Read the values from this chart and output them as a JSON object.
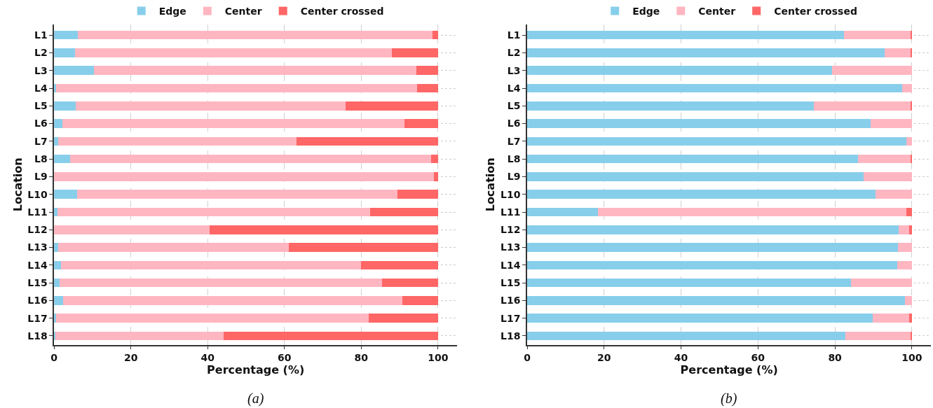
{
  "chart_data": [
    {
      "type": "bar",
      "orientation": "horizontal",
      "stacked": true,
      "xlabel": "Percentage (%)",
      "ylabel": "Location",
      "annotations": [
        "(a)"
      ],
      "categories": [
        "L1",
        "L2",
        "L3",
        "L4",
        "L5",
        "L6",
        "L7",
        "L8",
        "L9",
        "L10",
        "L11",
        "L12",
        "L13",
        "L14",
        "L15",
        "L16",
        "L17",
        "L18"
      ],
      "xlim": [
        0,
        105
      ],
      "xticks": [
        0,
        20,
        40,
        60,
        80,
        100
      ],
      "grid": true,
      "legend": "top",
      "series": [
        {
          "name": "Edge",
          "color": "#87ceeb",
          "values": [
            6.1,
            5.4,
            10.3,
            0.5,
            5.6,
            2.1,
            1.1,
            4.2,
            0,
            5.9,
            0.9,
            0,
            1.1,
            1.8,
            1.4,
            2.3,
            0.5,
            0.4
          ]
        },
        {
          "name": "Center",
          "color": "#ffb6c1",
          "values": [
            92.4,
            82.6,
            84.0,
            94.1,
            70.3,
            89.1,
            62.1,
            94.0,
            98.9,
            83.5,
            81.5,
            40.5,
            60.0,
            78.2,
            84.0,
            88.4,
            81.4,
            43.8
          ]
        },
        {
          "name": "Center crossed",
          "color": "#ff6666",
          "values": [
            1.5,
            12.0,
            5.7,
            5.4,
            24.1,
            8.8,
            36.8,
            1.8,
            1.1,
            10.6,
            17.6,
            59.5,
            38.9,
            20.0,
            14.6,
            9.3,
            18.1,
            55.8
          ]
        }
      ]
    },
    {
      "type": "bar",
      "orientation": "horizontal",
      "stacked": true,
      "xlabel": "Percentage (%)",
      "ylabel": "Location",
      "annotations": [
        "(b)"
      ],
      "categories": [
        "L1",
        "L2",
        "L3",
        "L4",
        "L5",
        "L6",
        "L7",
        "L8",
        "L9",
        "L10",
        "L11",
        "L12",
        "L13",
        "L14",
        "L15",
        "L16",
        "L17",
        "L18"
      ],
      "xlim": [
        0,
        105
      ],
      "xticks": [
        0,
        20,
        40,
        60,
        80,
        100
      ],
      "grid": true,
      "legend": "top",
      "series": [
        {
          "name": "Edge",
          "color": "#87ceeb",
          "values": [
            82.3,
            92.9,
            79.2,
            97.5,
            74.5,
            89.2,
            98.6,
            85.9,
            87.5,
            90.5,
            18.4,
            96.5,
            96.4,
            96.2,
            84.2,
            98.2,
            89.8,
            82.7
          ]
        },
        {
          "name": "Center",
          "color": "#ffb6c1",
          "values": [
            17.3,
            6.8,
            20.8,
            2.5,
            25.1,
            10.8,
            1.4,
            13.8,
            12.5,
            9.5,
            80.1,
            2.7,
            3.6,
            3.8,
            15.8,
            1.8,
            9.4,
            17.0
          ]
        },
        {
          "name": "Center crossed",
          "color": "#ff6666",
          "values": [
            0.4,
            0.3,
            0,
            0,
            0.4,
            0,
            0,
            0.3,
            0,
            0,
            1.5,
            0.8,
            0,
            0,
            0,
            0,
            0.8,
            0.3
          ]
        }
      ]
    }
  ]
}
